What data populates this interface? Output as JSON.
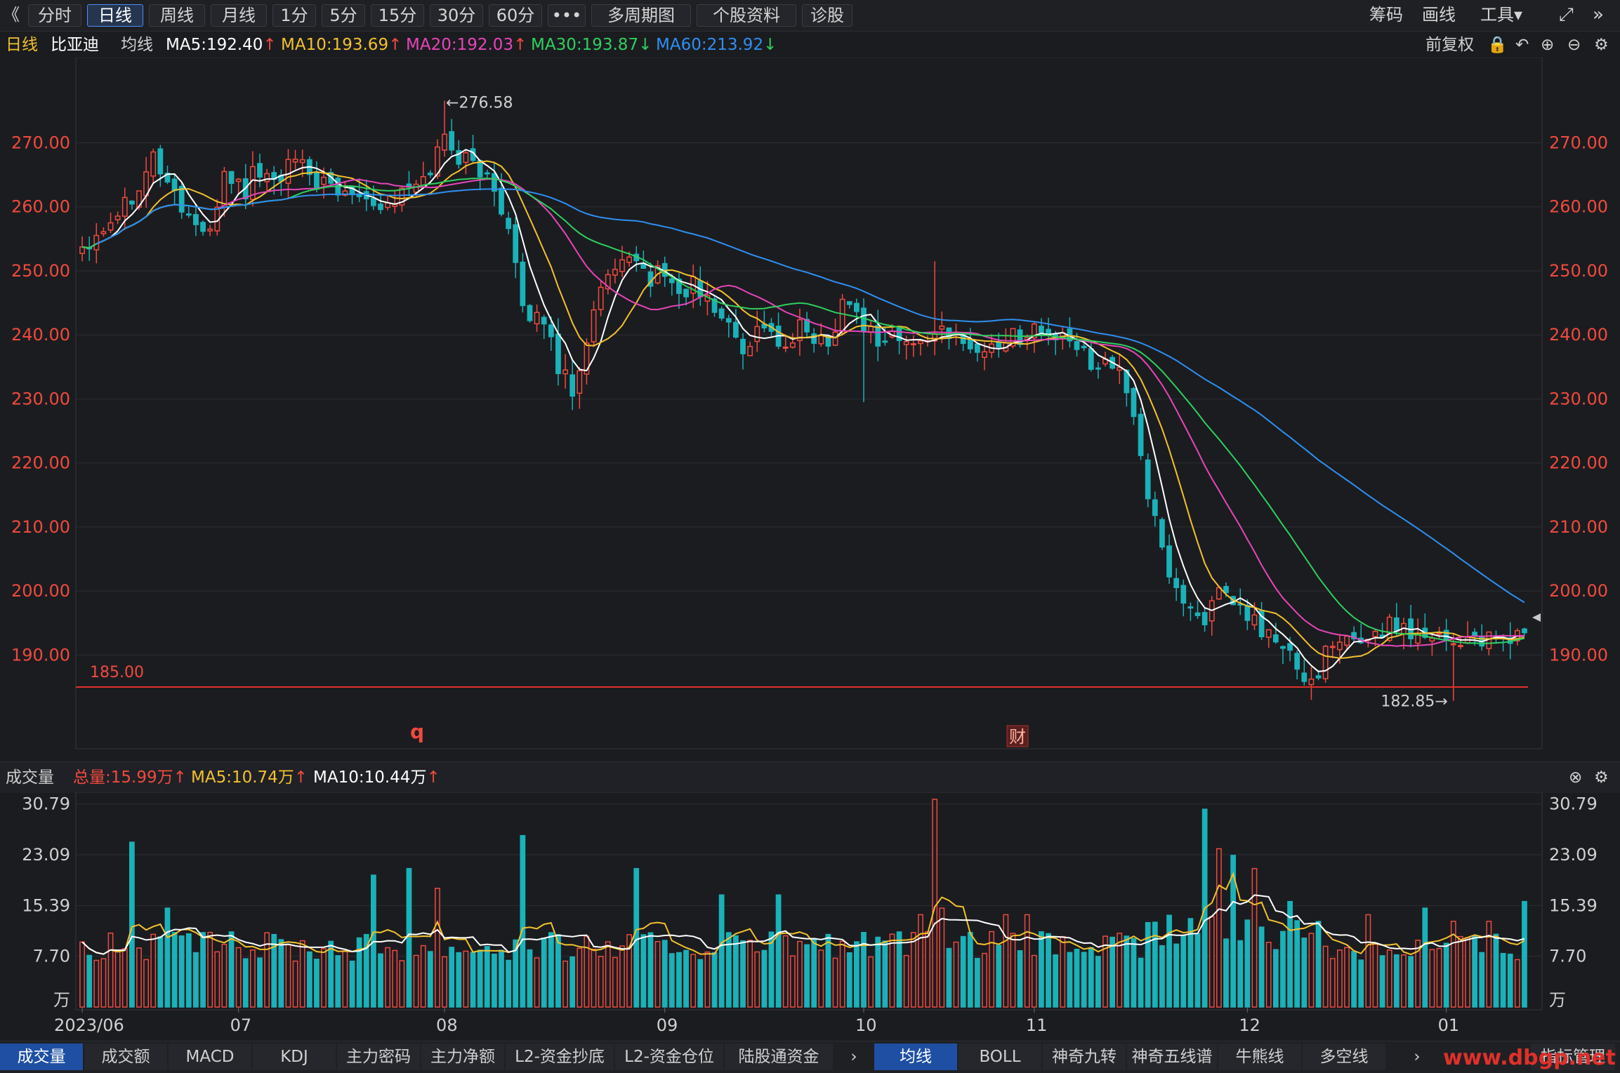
{
  "toolbar": {
    "back_glyph": "《",
    "periods": [
      "分时",
      "日线",
      "周线",
      "月线",
      "1分",
      "5分",
      "15分",
      "30分",
      "60分",
      "•••",
      "多周期图",
      "个股资料",
      "诊股"
    ],
    "active_period": "日线",
    "right": [
      "筹码",
      "画线",
      "工具▾"
    ]
  },
  "ma_bar": {
    "period": "日线",
    "stock": "比亚迪",
    "label": "均线",
    "ma5": "MA5:192.40",
    "ma10": "MA10:193.69",
    "ma20": "MA20:192.03",
    "ma30": "MA30:193.87",
    "ma60": "MA60:213.92",
    "ma5_arrow": "↑",
    "ma10_arrow": "↑",
    "ma20_arrow": "↑",
    "ma30_arrow": "↓",
    "ma60_arrow": "↓",
    "adjust": "前复权",
    "colors": {
      "ma5": "#ffffff",
      "ma10": "#f2c12e",
      "ma20": "#e546b8",
      "ma30": "#2fcf5e",
      "ma60": "#2f8ff0"
    }
  },
  "price_chart": {
    "y_ticks": [
      "270.00",
      "260.00",
      "250.00",
      "240.00",
      "230.00",
      "220.00",
      "210.00",
      "200.00",
      "190.00"
    ],
    "y_tick_values": [
      270,
      260,
      250,
      240,
      230,
      220,
      210,
      200,
      190
    ],
    "ylim": [
      177,
      282
    ],
    "high_label": "←276.58",
    "low_label": "182.85→",
    "line_label": "185.00",
    "line_value": 185.0,
    "markers": {
      "q": "q",
      "cai": "财"
    }
  },
  "volume_bar": {
    "title": "成交量",
    "total": "总量:15.99万",
    "ma5": "MA5:10.74万",
    "ma10": "MA10:10.44万",
    "arrow": "↑"
  },
  "volume_chart": {
    "y_ticks": [
      "30.79",
      "23.09",
      "15.39",
      "7.70",
      "万"
    ],
    "y_tick_values": [
      30.79,
      23.09,
      15.39,
      7.7,
      0
    ],
    "ylim": [
      0,
      31.5
    ]
  },
  "x_axis": {
    "labels": [
      "2023/06",
      "07",
      "08",
      "09",
      "10",
      "11",
      "12",
      "01"
    ],
    "label_index": [
      0,
      22,
      51,
      82,
      110,
      134,
      164,
      192
    ]
  },
  "bottom_tabs_left": [
    "成交量",
    "成交额",
    "MACD",
    "KDJ",
    "主力密码",
    "主力净额",
    "L2-资金抄底",
    "L2-资金仓位",
    "陆股通资金"
  ],
  "bottom_tabs_right": [
    "均线",
    "BOLL",
    "神奇九转",
    "神奇五线谱",
    "牛熊线",
    "多空线"
  ],
  "bottom_right_label": "指标管理",
  "watermark": "www.dbgp.net",
  "chart_data": {
    "type": "candlestick",
    "series_count": 204,
    "anchors_index": [
      0,
      3,
      7,
      10,
      12,
      14,
      18,
      20,
      23,
      24,
      27,
      30,
      33,
      36,
      39,
      42,
      45,
      48,
      51,
      53,
      56,
      58,
      60,
      62,
      63,
      65,
      67,
      69,
      70,
      72,
      75,
      78,
      80,
      82,
      84,
      86,
      88,
      90,
      93,
      96,
      99,
      101,
      103,
      105,
      107,
      110,
      112,
      114,
      117,
      120,
      122,
      124,
      126,
      129,
      132,
      134,
      136,
      138,
      140,
      142,
      145,
      148,
      150,
      152,
      155,
      158,
      160,
      162,
      164,
      166,
      167,
      169,
      170,
      171,
      173,
      175,
      178,
      181,
      183,
      185,
      187,
      188,
      190,
      193,
      196,
      198,
      200,
      203
    ],
    "anchors_close": [
      254,
      257,
      262,
      268,
      264,
      260,
      255,
      266,
      262,
      266,
      264,
      267,
      264,
      262,
      263,
      260,
      262,
      264,
      271,
      268,
      266,
      262,
      258,
      244,
      241,
      243,
      235,
      232,
      234,
      245,
      250,
      251,
      249,
      250,
      246,
      248,
      245,
      243,
      238,
      242,
      237,
      241,
      240,
      238,
      246,
      242,
      239,
      240,
      238,
      241,
      239,
      240,
      237,
      239,
      240,
      241,
      240,
      239,
      238,
      236,
      236,
      228,
      215,
      206,
      198,
      196,
      199,
      198,
      196,
      194,
      193,
      191,
      190,
      187,
      186,
      190,
      192,
      193,
      194,
      195,
      194,
      193,
      194,
      192,
      193,
      192,
      192,
      194
    ],
    "volume_peaks": [
      [
        7,
        25
      ],
      [
        12,
        15
      ],
      [
        27,
        11
      ],
      [
        41,
        20
      ],
      [
        46,
        21
      ],
      [
        50,
        18
      ],
      [
        62,
        26
      ],
      [
        78,
        21
      ],
      [
        90,
        17
      ],
      [
        98,
        17
      ],
      [
        113,
        10
      ],
      [
        118,
        14
      ],
      [
        120,
        31.5
      ],
      [
        121,
        15
      ],
      [
        130,
        14
      ],
      [
        133,
        14
      ],
      [
        158,
        30
      ],
      [
        160,
        24
      ],
      [
        162,
        23
      ],
      [
        165,
        21
      ],
      [
        170,
        16
      ],
      [
        181,
        14
      ],
      [
        189,
        15
      ],
      [
        193,
        13
      ],
      [
        198,
        13
      ],
      [
        203,
        16
      ]
    ],
    "volume_base": 9.2
  }
}
